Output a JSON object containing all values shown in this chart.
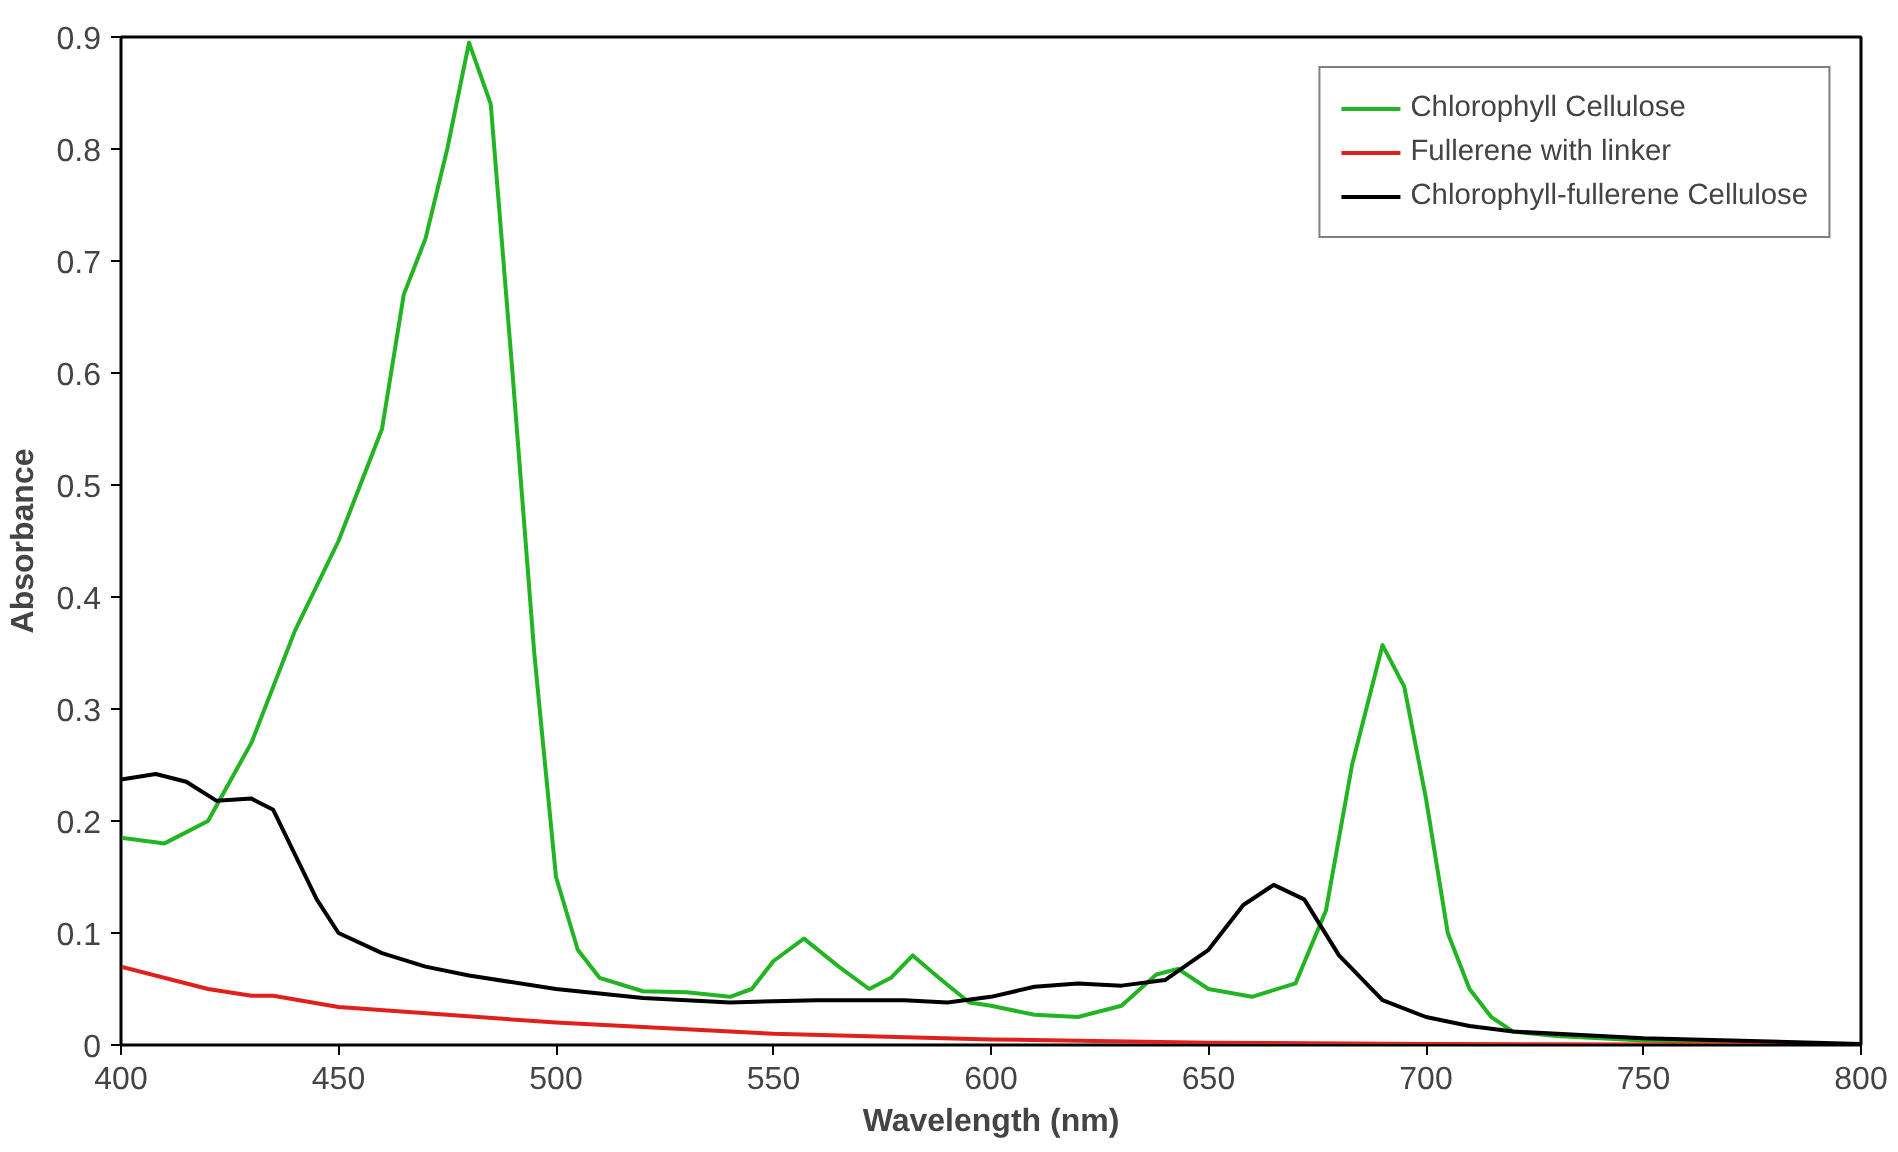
{
  "chart_data": {
    "type": "line",
    "xlabel": "Wavelength (nm)",
    "ylabel": "Absorbance",
    "xlim": [
      400,
      800
    ],
    "ylim": [
      0,
      0.9
    ],
    "xticks": [
      400,
      450,
      500,
      550,
      600,
      650,
      700,
      750,
      800
    ],
    "yticks": [
      0,
      0.1,
      0.2,
      0.3,
      0.4,
      0.5,
      0.6,
      0.7,
      0.8,
      0.9
    ],
    "grid": false,
    "legend": "top right",
    "marker": "none",
    "line_style": "solid",
    "series": [
      {
        "name": "Chlorophyll Cellulose",
        "color": "#22b422",
        "x": [
          400,
          410,
          420,
          430,
          440,
          450,
          460,
          465,
          470,
          475,
          480,
          485,
          490,
          495,
          500,
          505,
          510,
          520,
          530,
          540,
          545,
          550,
          557,
          565,
          572,
          577,
          582,
          588,
          595,
          600,
          610,
          620,
          630,
          638,
          643,
          650,
          660,
          670,
          677,
          683,
          690,
          695,
          700,
          705,
          710,
          715,
          720,
          730,
          750,
          800
        ],
        "values": [
          0.185,
          0.18,
          0.2,
          0.27,
          0.37,
          0.45,
          0.55,
          0.67,
          0.72,
          0.8,
          0.895,
          0.84,
          0.6,
          0.35,
          0.15,
          0.085,
          0.06,
          0.048,
          0.047,
          0.043,
          0.05,
          0.075,
          0.095,
          0.07,
          0.05,
          0.06,
          0.08,
          0.06,
          0.038,
          0.035,
          0.027,
          0.025,
          0.035,
          0.063,
          0.068,
          0.05,
          0.043,
          0.055,
          0.12,
          0.25,
          0.357,
          0.32,
          0.22,
          0.1,
          0.05,
          0.025,
          0.012,
          0.008,
          0.004,
          0.0
        ]
      },
      {
        "name": "Fullerene with linker",
        "color": "#e0201c",
        "x": [
          400,
          420,
          430,
          435,
          450,
          500,
          550,
          600,
          650,
          700,
          800
        ],
        "values": [
          0.07,
          0.05,
          0.044,
          0.044,
          0.034,
          0.02,
          0.01,
          0.005,
          0.002,
          0.001,
          0.0
        ]
      },
      {
        "name": "Chlorophyll-fullerene Cellulose",
        "color": "#000000",
        "x": [
          400,
          408,
          415,
          422,
          430,
          435,
          440,
          445,
          450,
          460,
          470,
          480,
          500,
          520,
          540,
          560,
          580,
          590,
          600,
          610,
          620,
          630,
          640,
          650,
          658,
          665,
          672,
          680,
          690,
          700,
          710,
          720,
          750,
          800
        ],
        "values": [
          0.237,
          0.242,
          0.235,
          0.218,
          0.22,
          0.21,
          0.17,
          0.13,
          0.1,
          0.082,
          0.07,
          0.062,
          0.05,
          0.042,
          0.038,
          0.04,
          0.04,
          0.038,
          0.043,
          0.052,
          0.055,
          0.053,
          0.058,
          0.085,
          0.125,
          0.143,
          0.13,
          0.08,
          0.04,
          0.025,
          0.017,
          0.012,
          0.006,
          0.001
        ]
      }
    ]
  }
}
